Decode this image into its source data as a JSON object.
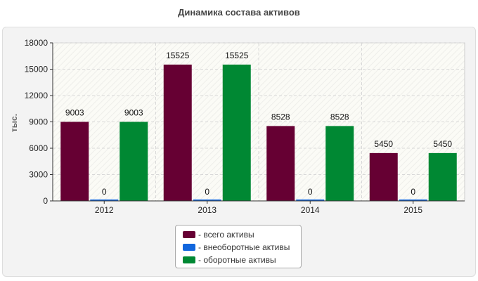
{
  "chart_data": {
    "type": "bar",
    "title": "Динамика состава активов",
    "ylabel": "тыс.",
    "xlabel": "",
    "categories": [
      "2012",
      "2013",
      "2014",
      "2015"
    ],
    "ylim": [
      0,
      18000
    ],
    "yticks": [
      "0",
      "3000",
      "6000",
      "9000",
      "12000",
      "15000",
      "18000"
    ],
    "grid": true,
    "legend_position": "bottom-center",
    "series": [
      {
        "name": "- всего активы",
        "color": "#660033",
        "values": [
          9003,
          15525,
          8528,
          5450
        ]
      },
      {
        "name": "- внеоборотные активы",
        "color": "#1166dd",
        "values": [
          0,
          0,
          0,
          0
        ]
      },
      {
        "name": "- оборотные активы",
        "color": "#008833",
        "values": [
          9003,
          15525,
          8528,
          5450
        ]
      }
    ]
  }
}
